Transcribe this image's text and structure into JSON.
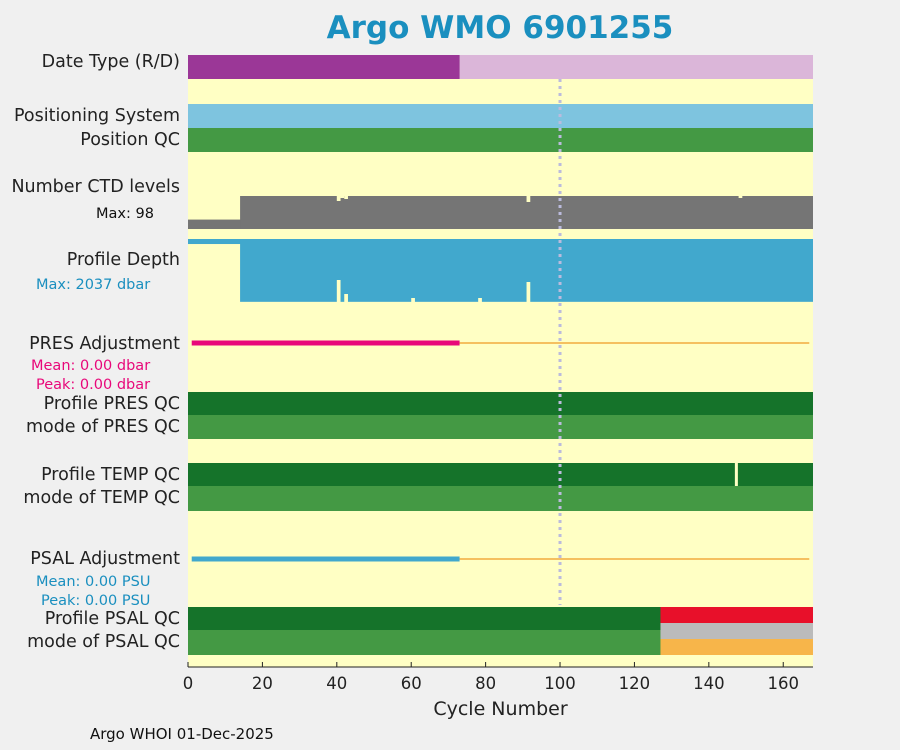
{
  "title": "Argo WMO 6901255",
  "footer": "Argo WHOI 01-Dec-2025",
  "colors": {
    "background": "#ffffc4",
    "date_real": "#9b3797",
    "date_delayed": "#dbb6d9",
    "positioning": "#7ec4df",
    "qc_good_dark": "#15732a",
    "qc_good": "#449944",
    "ctd_levels": "#757575",
    "profile_depth": "#41a8cd",
    "pres_adjust": "#e8087a",
    "psal_adjust": "#41a8cd",
    "adjust_line": "#f5c060",
    "qc_bad": "#e8102a",
    "qc_gray": "#bbbbbb",
    "qc_orange": "#f7b54a",
    "ref_line": "#bbbbdd"
  },
  "chart_data": {
    "type": "bar",
    "title": "Argo WMO 6901255",
    "xlabel": "Cycle Number",
    "xlim": [
      0,
      168
    ],
    "xticks": [
      0,
      20,
      40,
      60,
      80,
      100,
      120,
      140,
      160
    ],
    "reference_line_x": 100,
    "rows": {
      "date_type": {
        "label": "Date Type (R/D)",
        "segments": [
          {
            "from": 1,
            "to": 74,
            "status": "R"
          },
          {
            "from": 74,
            "to": 168,
            "status": "D"
          }
        ]
      },
      "positioning_system": {
        "label": "Positioning System",
        "segments": [
          {
            "from": 1,
            "to": 168,
            "status": "GPS"
          }
        ]
      },
      "position_qc": {
        "label": "Position QC",
        "segments": [
          {
            "from": 1,
            "to": 168,
            "status": "1"
          }
        ]
      },
      "ctd_levels": {
        "label": "Number CTD levels",
        "max_label": "Max: 98",
        "max": 98,
        "series": [
          {
            "from": 1,
            "to": 15,
            "value": 28
          },
          {
            "from": 15,
            "to": 168,
            "value": 98
          }
        ]
      },
      "profile_depth": {
        "label": "Profile Depth",
        "max_label": "Max: 2037 dbar",
        "max": 2037,
        "series": [
          {
            "from": 1,
            "to": 15,
            "value": 160
          },
          {
            "from": 15,
            "to": 168,
            "value": 2000
          }
        ]
      },
      "pres_adjustment": {
        "label": "PRES Adjustment",
        "mean_label": "Mean: 0.00 dbar",
        "peak_label": "Peak: 0.00 dbar",
        "adjusted_until": 73,
        "last_cycle": 167
      },
      "profile_pres_qc": {
        "label": "Profile PRES QC",
        "segments": [
          {
            "from": 1,
            "to": 168,
            "status": "A"
          }
        ]
      },
      "mode_pres_qc": {
        "label": "mode of PRES QC",
        "segments": [
          {
            "from": 1,
            "to": 168,
            "status": "1"
          }
        ]
      },
      "profile_temp_qc": {
        "label": "Profile TEMP QC",
        "segments": [
          {
            "from": 1,
            "to": 168,
            "status": "A"
          }
        ],
        "gap_at": 147
      },
      "mode_temp_qc": {
        "label": "mode of TEMP QC",
        "segments": [
          {
            "from": 1,
            "to": 168,
            "status": "1"
          }
        ]
      },
      "psal_adjustment": {
        "label": "PSAL Adjustment",
        "mean_label": "Mean: 0.00 PSU",
        "peak_label": "Peak: 0.00 PSU",
        "adjusted_until": 73,
        "last_cycle": 167
      },
      "profile_psal_qc": {
        "label": "Profile PSAL QC",
        "segments": [
          {
            "from": 1,
            "to": 128,
            "status": "A"
          },
          {
            "from": 128,
            "to": 168,
            "status": "F"
          }
        ]
      },
      "mode_psal_qc": {
        "label": "mode of PSAL QC",
        "segments": [
          {
            "from": 1,
            "to": 128,
            "status": "1"
          },
          {
            "from": 128,
            "to": 168,
            "status": "3/4"
          }
        ]
      }
    }
  }
}
